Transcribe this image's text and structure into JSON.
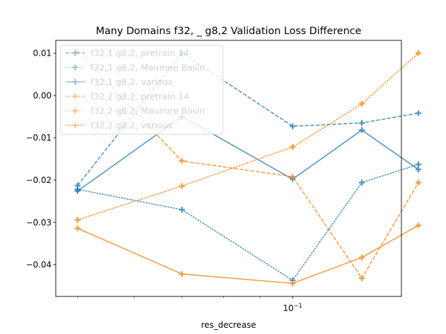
{
  "chart_data": {
    "type": "line",
    "title": "Many Domains f32, _ g8,2 Validation Loss Difference",
    "xlabel": "res_decrease",
    "ylabel": "",
    "xscale": "log",
    "xlim": [
      0.0466,
      0.142
    ],
    "ylim": [
      -0.0475,
      0.013
    ],
    "x": [
      0.05,
      0.07,
      0.1,
      0.125,
      0.15
    ],
    "x_tick_labels": [
      {
        "value": 0.1,
        "base": "10",
        "exponent": "−1"
      }
    ],
    "y_ticks": [
      0.01,
      0.0,
      -0.01,
      -0.02,
      -0.03,
      -0.04
    ],
    "y_tick_labels": [
      "0.01",
      "0.00",
      "−0.01",
      "−0.02",
      "−0.03",
      "−0.04"
    ],
    "grid": false,
    "legend_placement": "top-left",
    "series": [
      {
        "name": "f32,1 g8,2, pretrain 14",
        "color": "#1f77b4",
        "style": "dashed",
        "values": [
          -0.0213,
          0.01,
          -0.0073,
          -0.0065,
          -0.0042
        ]
      },
      {
        "name": "f32,1 g8,2, Maumee Basin",
        "color": "#1f77b4",
        "style": "dotted",
        "values": [
          -0.0222,
          -0.027,
          -0.0437,
          -0.0206,
          -0.0163
        ]
      },
      {
        "name": "f32,1 g8,2, various",
        "color": "#1f77b4",
        "style": "solid",
        "values": [
          -0.0226,
          -0.005,
          -0.0198,
          -0.0082,
          -0.0175
        ]
      },
      {
        "name": "f32,2 g8,2, pretrain 14",
        "color": "#ff7f0e",
        "style": "dashed",
        "values": [
          0.0103,
          -0.0155,
          -0.0192,
          -0.0432,
          -0.0206
        ]
      },
      {
        "name": "f32,2 g8,2, Maumee Basin",
        "color": "#ff7f0e",
        "style": "dotted",
        "values": [
          -0.0294,
          -0.0214,
          -0.0122,
          -0.002,
          0.01
        ]
      },
      {
        "name": "f32,2 g8,2, various",
        "color": "#ff7f0e",
        "style": "solid",
        "values": [
          -0.0314,
          -0.0422,
          -0.0444,
          -0.0383,
          -0.0307
        ]
      }
    ]
  }
}
